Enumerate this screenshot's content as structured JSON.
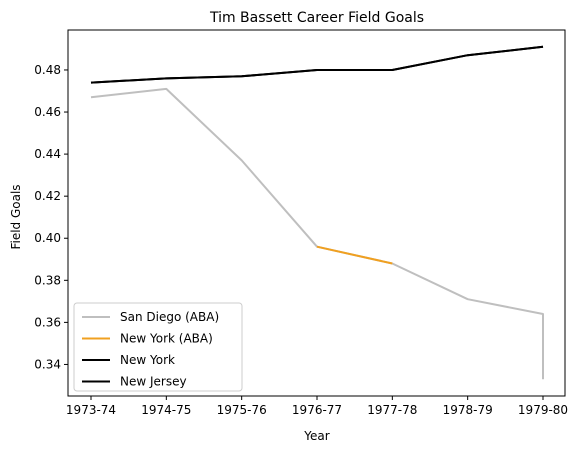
{
  "chart_data": {
    "type": "line",
    "title": "Tim Bassett Career Field Goals",
    "xlabel": "Year",
    "ylabel": "Field Goals",
    "categories": [
      "1973-74",
      "1974-75",
      "1975-76",
      "1976-77",
      "1977-78",
      "1978-79",
      "1979-80"
    ],
    "ylim": [
      0.325,
      0.499
    ],
    "yticks": [
      0.34,
      0.36,
      0.38,
      0.4,
      0.42,
      0.44,
      0.46,
      0.48
    ],
    "ytick_labels": [
      "0.34",
      "0.36",
      "0.38",
      "0.40",
      "0.42",
      "0.44",
      "0.46",
      "0.48"
    ],
    "grid": false,
    "legend": "lower-left",
    "series": [
      {
        "name": "San Diego (ABA)",
        "color": "#bfbfbf",
        "points": [
          [
            "1973-74",
            0.467
          ],
          [
            "1974-75",
            0.471
          ],
          [
            "1975-76",
            0.437
          ],
          [
            "1976-77",
            0.396
          ],
          [
            "1977-78",
            0.388
          ],
          [
            "1978-79",
            0.371
          ],
          [
            "1979-80",
            0.364
          ],
          [
            "1979-80",
            0.333
          ]
        ]
      },
      {
        "name": "New York (ABA)",
        "color": "#f0a020",
        "points": [
          [
            "1976-77",
            0.396
          ],
          [
            "1977-78",
            0.388
          ]
        ]
      },
      {
        "name": "New York",
        "color": "#000000",
        "points": [
          [
            "1973-74",
            0.474
          ],
          [
            "1974-75",
            0.476
          ],
          [
            "1975-76",
            0.477
          ],
          [
            "1976-77",
            0.48
          ],
          [
            "1977-78",
            0.48
          ],
          [
            "1978-79",
            0.487
          ],
          [
            "1979-80",
            0.491
          ]
        ]
      },
      {
        "name": "New Jersey",
        "color": "#000000",
        "points": [
          [
            "1973-74",
            0.474
          ],
          [
            "1974-75",
            0.476
          ],
          [
            "1975-76",
            0.477
          ],
          [
            "1976-77",
            0.48
          ],
          [
            "1977-78",
            0.48
          ],
          [
            "1978-79",
            0.487
          ],
          [
            "1979-80",
            0.491
          ]
        ]
      }
    ]
  }
}
